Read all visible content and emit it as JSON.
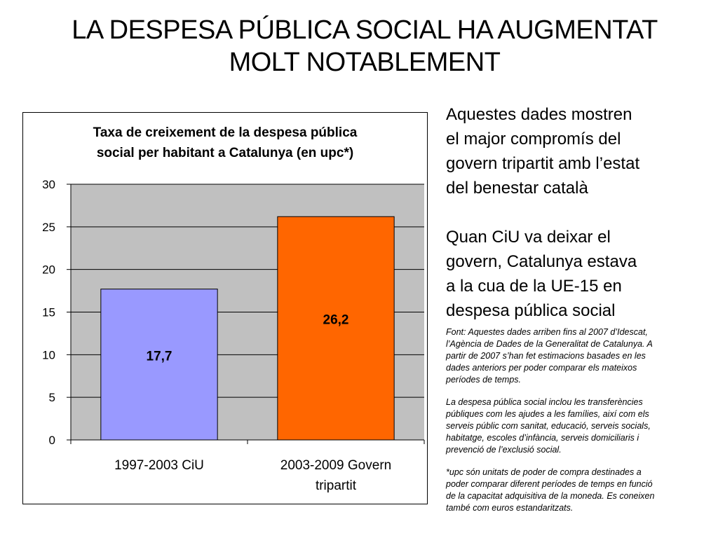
{
  "slide": {
    "title_line1": "LA DESPESA PÚBLICA SOCIAL HA AUGMENTAT",
    "title_line2": "MOLT NOTABLEMENT"
  },
  "side_text": {
    "paragraph1": [
      "Aquestes dades mostren",
      "el major compromís del",
      "govern tripartit amb l’estat",
      "del benestar català"
    ],
    "paragraph2": [
      "Quan CiU va deixar el",
      "govern, Catalunya estava",
      "a la cua de la UE-15 en",
      "despesa pública social"
    ]
  },
  "notes": {
    "source": [
      "Font: Aquestes dades arriben fins al 2007 d’Idescat,",
      "l’Agència de Dades de la Generalitat de Catalunya. A",
      "partir de 2007 s’han fet estimacions basades en les",
      "dades anteriors per poder comparar els mateixos",
      "períodes de temps."
    ],
    "definition": [
      "La despesa pública social inclou les transferències",
      "públiques com les ajudes a les famílies, així com els",
      "serveis públic com sanitat, educació, serveis socials,",
      "habitatge, escoles d’infància, serveis domiciliaris i",
      "prevenció de l’exclusió social."
    ],
    "upc": [
      "*upc són unitats de poder de compra destinades a",
      "poder comparar diferent períodes de temps en funció",
      "de la capacitat adquisitiva de la moneda. Es coneixen",
      "també com euros estandaritzats."
    ]
  },
  "chart_data": {
    "type": "bar",
    "title_lines": [
      "Taxa de creixement de la despesa pública",
      "social per habitant a Catalunya (en upc*)"
    ],
    "categories": [
      [
        "1997-2003 CiU"
      ],
      [
        "2003-2009 Govern",
        "tripartit"
      ]
    ],
    "values": [
      17.7,
      26.2
    ],
    "data_labels": [
      "17,7",
      "26,2"
    ],
    "bar_colors": [
      "#9999ff",
      "#ff6600"
    ],
    "plot_background": "#c0c0c0",
    "ylim": [
      0,
      30
    ],
    "yticks": [
      0,
      5,
      10,
      15,
      20,
      25,
      30
    ],
    "grid": true,
    "legend": "none"
  }
}
